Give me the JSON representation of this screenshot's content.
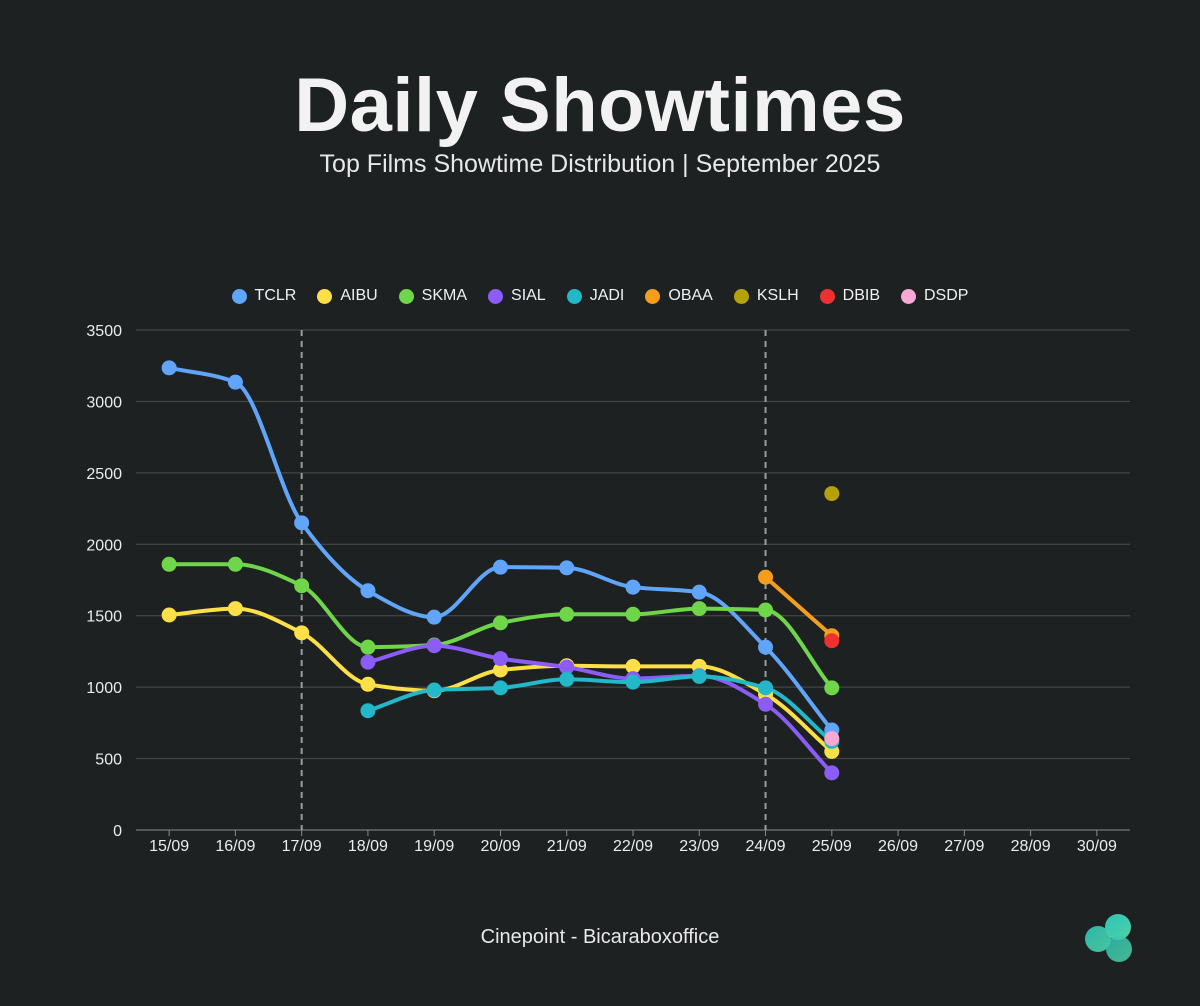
{
  "header": {
    "title": "Daily Showtimes",
    "subtitle": "Top Films Showtime Distribution | September 2025"
  },
  "footer": {
    "credit": "Cinepoint - Bicaraboxoffice"
  },
  "chart_data": {
    "type": "line",
    "title": "Daily Showtimes",
    "subtitle": "Top Films Showtime Distribution | September 2025",
    "xlabel": "",
    "ylabel": "",
    "categories": [
      "15/09",
      "16/09",
      "17/09",
      "18/09",
      "19/09",
      "20/09",
      "21/09",
      "22/09",
      "23/09",
      "24/09",
      "25/09",
      "26/09",
      "27/09",
      "28/09",
      "30/09"
    ],
    "ylim": [
      0,
      3500
    ],
    "yticks": [
      0,
      500,
      1000,
      1500,
      2000,
      2500,
      3000,
      3500
    ],
    "grid": true,
    "legend_position": "top",
    "reference_lines": [
      "17/09",
      "24/09"
    ],
    "series": [
      {
        "name": "TCLR",
        "color": "#60a5fa",
        "values": [
          3235,
          3135,
          2150,
          1675,
          1490,
          1840,
          1835,
          1700,
          1665,
          1280,
          700,
          null,
          null,
          null,
          null
        ]
      },
      {
        "name": "AIBU",
        "color": "#fde047",
        "values": [
          1505,
          1550,
          1380,
          1020,
          975,
          1120,
          1150,
          1145,
          1145,
          950,
          550,
          null,
          null,
          null,
          null
        ]
      },
      {
        "name": "SKMA",
        "color": "#6fd64a",
        "values": [
          1860,
          1860,
          1710,
          1280,
          1295,
          1450,
          1510,
          1510,
          1550,
          1540,
          995,
          null,
          null,
          null,
          null
        ]
      },
      {
        "name": "SIAL",
        "color": "#8b5cf6",
        "values": [
          null,
          null,
          null,
          1175,
          1290,
          1200,
          1140,
          1060,
          1080,
          880,
          400,
          null,
          null,
          null,
          null
        ]
      },
      {
        "name": "JADI",
        "color": "#22b8c8",
        "values": [
          null,
          null,
          null,
          835,
          980,
          995,
          1055,
          1035,
          1075,
          995,
          620,
          null,
          null,
          null,
          null
        ]
      },
      {
        "name": "OBAA",
        "color": "#f59e1b",
        "values": [
          null,
          null,
          null,
          null,
          null,
          null,
          null,
          null,
          null,
          1770,
          1360,
          null,
          null,
          null,
          null
        ]
      },
      {
        "name": "KSLH",
        "color": "#b5a20a",
        "values": [
          null,
          null,
          null,
          null,
          null,
          null,
          null,
          null,
          null,
          null,
          2355,
          null,
          null,
          null,
          null
        ]
      },
      {
        "name": "DBIB",
        "color": "#ef3030",
        "values": [
          null,
          null,
          null,
          null,
          null,
          null,
          null,
          null,
          null,
          null,
          1325,
          null,
          null,
          null,
          null
        ]
      },
      {
        "name": "DSDP",
        "color": "#f9a8d4",
        "values": [
          null,
          null,
          null,
          null,
          null,
          null,
          null,
          null,
          null,
          null,
          640,
          null,
          null,
          null,
          null
        ]
      }
    ]
  }
}
